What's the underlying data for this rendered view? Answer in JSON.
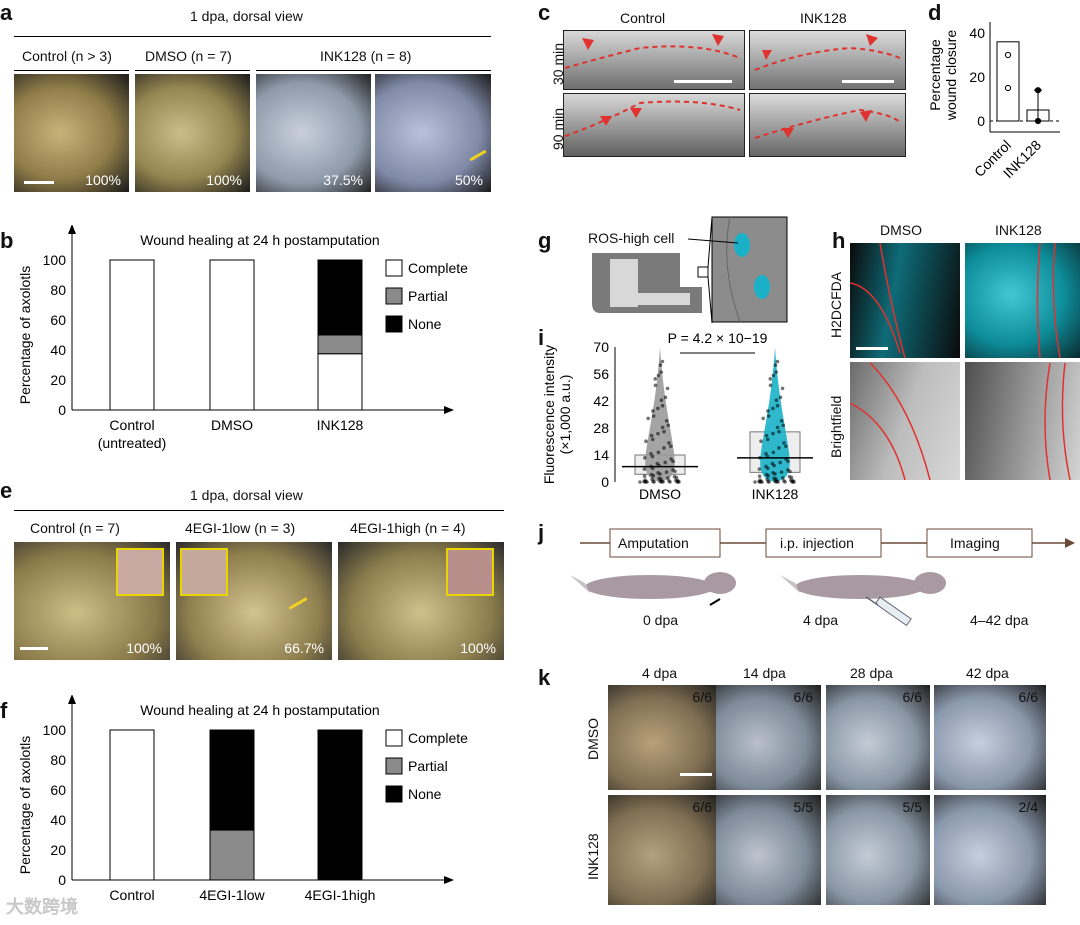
{
  "panel_a": {
    "label": "a",
    "header": "1 dpa, dorsal view",
    "cols": [
      "Control (n > 3)",
      "DMSO (n = 7)",
      "INK128 (n = 8)"
    ],
    "percents": [
      "100%",
      "100%",
      "37.5%",
      "50%"
    ]
  },
  "panel_b": {
    "label": "b"
  },
  "panel_c": {
    "label": "c",
    "cols": [
      "Control",
      "INK128"
    ],
    "rows": [
      "30 min",
      "90 min"
    ]
  },
  "panel_d": {
    "label": "d"
  },
  "panel_e": {
    "label": "e",
    "header": "1 dpa, dorsal view",
    "cols": [
      "Control (n = 7)",
      "4EGI-1low (n = 3)",
      "4EGI-1high (n = 4)"
    ],
    "percents": [
      "100%",
      "66.7%",
      "100%"
    ]
  },
  "panel_f": {
    "label": "f"
  },
  "panel_g": {
    "label": "g",
    "callout": "ROS-high cell"
  },
  "panel_h": {
    "label": "h",
    "cols": [
      "DMSO",
      "INK128"
    ],
    "rows": [
      "H2DCFDA",
      "Brightfield"
    ]
  },
  "panel_i": {
    "label": "i"
  },
  "panel_j": {
    "label": "j",
    "steps": [
      "Amputation",
      "i.p. injection",
      "Imaging"
    ],
    "timepoints": [
      "0 dpa",
      "4 dpa",
      "4–42 dpa"
    ]
  },
  "panel_k": {
    "label": "k",
    "cols": [
      "4 dpa",
      "14 dpa",
      "28 dpa",
      "42 dpa"
    ],
    "rows": [
      "DMSO",
      "INK128"
    ],
    "dmso_fracs": [
      "6/6",
      "6/6",
      "6/6",
      "6/6"
    ],
    "ink_fracs": [
      "6/6",
      "5/5",
      "5/5",
      "2/4"
    ]
  },
  "watermark": "大数跨境",
  "colors": {
    "cyan": "#1ab0c8",
    "red": "#e0322f",
    "gray": "#8a8a8a",
    "black": "#000000"
  },
  "chart_data": [
    {
      "id": "b",
      "type": "bar",
      "stacked": true,
      "title": "Wound healing at 24 h postamputation",
      "ylabel": "Percentage of axolotls",
      "categories": [
        "Control (untreated)",
        "DMSO",
        "INK128"
      ],
      "series": [
        {
          "name": "Complete",
          "values": [
            100,
            100,
            37.5
          ]
        },
        {
          "name": "Partial",
          "values": [
            0,
            0,
            12.5
          ]
        },
        {
          "name": "None",
          "values": [
            0,
            0,
            50
          ]
        }
      ],
      "ylim": [
        0,
        100
      ],
      "yticks": [
        "0",
        "20",
        "40",
        "60",
        "80",
        "100"
      ],
      "legend": [
        "Complete",
        "Partial",
        "None"
      ],
      "legend_position": "right"
    },
    {
      "id": "d",
      "type": "bar",
      "ylabel": "Percentage wound closure",
      "categories": [
        "Control",
        "INK128"
      ],
      "values": [
        36,
        5
      ],
      "points": [
        [
          30,
          15
        ],
        [
          14,
          0
        ]
      ],
      "ylim": [
        -5,
        45
      ],
      "yticks": [
        "0",
        "20",
        "40"
      ]
    },
    {
      "id": "f",
      "type": "bar",
      "stacked": true,
      "title": "Wound healing at 24 h postamputation",
      "ylabel": "Percentage of axolotls",
      "categories": [
        "Control",
        "4EGI-1low",
        "4EGI-1high"
      ],
      "series": [
        {
          "name": "Complete",
          "values": [
            100,
            0,
            0
          ]
        },
        {
          "name": "Partial",
          "values": [
            0,
            33.3,
            0
          ]
        },
        {
          "name": "None",
          "values": [
            0,
            66.7,
            100
          ]
        }
      ],
      "ylim": [
        0,
        100
      ],
      "yticks": [
        "0",
        "20",
        "40",
        "60",
        "80",
        "100"
      ],
      "legend": [
        "Complete",
        "Partial",
        "None"
      ],
      "legend_position": "right"
    },
    {
      "id": "i",
      "type": "scatter",
      "ylabel": "Fluorescence intensity (×1,000 a.u.)",
      "categories": [
        "DMSO",
        "INK128"
      ],
      "median": [
        8,
        12.5
      ],
      "box": [
        [
          4,
          14
        ],
        [
          5,
          26
        ]
      ],
      "ylim": [
        0,
        70
      ],
      "yticks": [
        "0",
        "14",
        "28",
        "42",
        "56",
        "70"
      ],
      "annotation": "P = 4.2 × 10−19"
    }
  ]
}
